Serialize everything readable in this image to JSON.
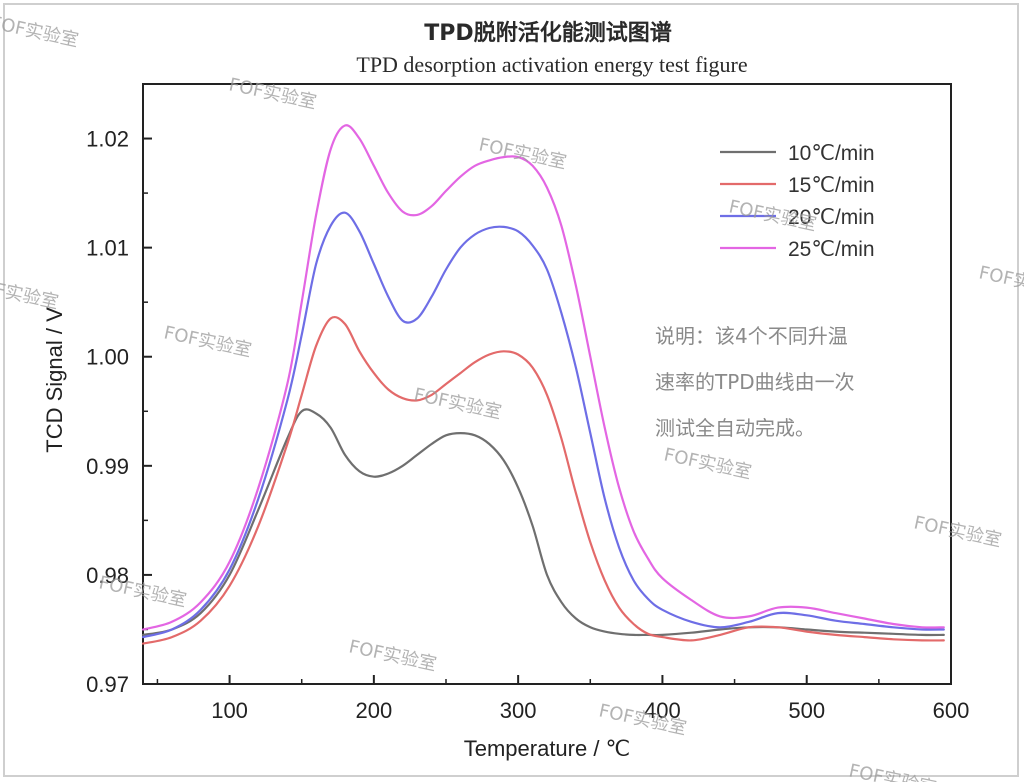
{
  "chart_data": {
    "type": "line",
    "title": "TPD脱附活化能测试图谱",
    "subtitle": "TPD desorption activation energy test figure",
    "xlabel": "Temperature / ℃",
    "ylabel": "TCD Signal / V",
    "xlim": [
      40,
      600
    ],
    "ylim": [
      0.97,
      1.025
    ],
    "x_ticks": [
      100,
      200,
      300,
      400,
      500,
      600
    ],
    "x_tick_labels": [
      "100",
      "200",
      "300",
      "400",
      "500",
      "600"
    ],
    "y_ticks": [
      0.97,
      0.98,
      0.99,
      1.0,
      1.01,
      1.02
    ],
    "y_tick_labels": [
      "0.97",
      "0.98",
      "0.99",
      "1.00",
      "1.01",
      "1.02"
    ],
    "grid": false,
    "legend_position": "top-right",
    "x": [
      40,
      60,
      80,
      100,
      120,
      140,
      150,
      160,
      170,
      180,
      190,
      200,
      210,
      220,
      230,
      240,
      250,
      260,
      270,
      280,
      290,
      300,
      310,
      320,
      330,
      340,
      350,
      360,
      370,
      380,
      390,
      400,
      420,
      440,
      460,
      480,
      500,
      520,
      540,
      560,
      580,
      595
    ],
    "series": [
      {
        "name": "10℃/min",
        "color": "#6f6f6f",
        "values": [
          0.9745,
          0.975,
          0.9765,
          0.98,
          0.986,
          0.9925,
          0.995,
          0.9948,
          0.9935,
          0.991,
          0.9895,
          0.989,
          0.9893,
          0.99,
          0.991,
          0.992,
          0.9928,
          0.993,
          0.9928,
          0.992,
          0.9905,
          0.988,
          0.9845,
          0.98,
          0.9775,
          0.976,
          0.9752,
          0.9748,
          0.9746,
          0.9745,
          0.9745,
          0.9745,
          0.9747,
          0.975,
          0.9752,
          0.9752,
          0.975,
          0.9748,
          0.9747,
          0.9746,
          0.9745,
          0.9745
        ]
      },
      {
        "name": "15℃/min",
        "color": "#e36a6a",
        "values": [
          0.9737,
          0.9743,
          0.9758,
          0.979,
          0.9845,
          0.992,
          0.9965,
          1.001,
          1.0035,
          1.003,
          1.0005,
          0.9985,
          0.997,
          0.9962,
          0.996,
          0.9965,
          0.9975,
          0.9985,
          0.9995,
          1.0002,
          1.0005,
          1.0002,
          0.999,
          0.9965,
          0.9925,
          0.9875,
          0.983,
          0.9795,
          0.977,
          0.9755,
          0.9746,
          0.9743,
          0.974,
          0.9745,
          0.9752,
          0.9752,
          0.9748,
          0.9745,
          0.9743,
          0.9741,
          0.974,
          0.974
        ]
      },
      {
        "name": "20℃/min",
        "color": "#6e6ee6",
        "values": [
          0.9743,
          0.975,
          0.9768,
          0.9805,
          0.987,
          0.996,
          1.002,
          1.0085,
          1.012,
          1.0132,
          1.0115,
          1.0085,
          1.0055,
          1.0033,
          1.0035,
          1.0055,
          1.008,
          1.01,
          1.0112,
          1.0118,
          1.0119,
          1.0115,
          1.0102,
          1.008,
          1.004,
          0.999,
          0.993,
          0.987,
          0.9825,
          0.9795,
          0.9778,
          0.9768,
          0.9757,
          0.9752,
          0.9757,
          0.9765,
          0.9763,
          0.9758,
          0.9755,
          0.9752,
          0.975,
          0.975
        ]
      },
      {
        "name": "25℃/min",
        "color": "#e366e3",
        "values": [
          0.975,
          0.9757,
          0.9775,
          0.9812,
          0.988,
          0.9975,
          1.005,
          1.013,
          1.019,
          1.0212,
          1.02,
          1.0175,
          1.015,
          1.0133,
          1.013,
          1.0138,
          1.0152,
          1.0165,
          1.0175,
          1.018,
          1.0183,
          1.0183,
          1.0175,
          1.0155,
          1.012,
          1.0065,
          1.0,
          0.9935,
          0.988,
          0.984,
          0.9815,
          0.9797,
          0.9777,
          0.9762,
          0.9762,
          0.977,
          0.977,
          0.9765,
          0.976,
          0.9755,
          0.9752,
          0.9752
        ]
      }
    ],
    "note": [
      "说明：该4个不同升温",
      "速率的TPD曲线由一次",
      "测试全自动完成。"
    ],
    "watermark": "FOF实验室"
  }
}
